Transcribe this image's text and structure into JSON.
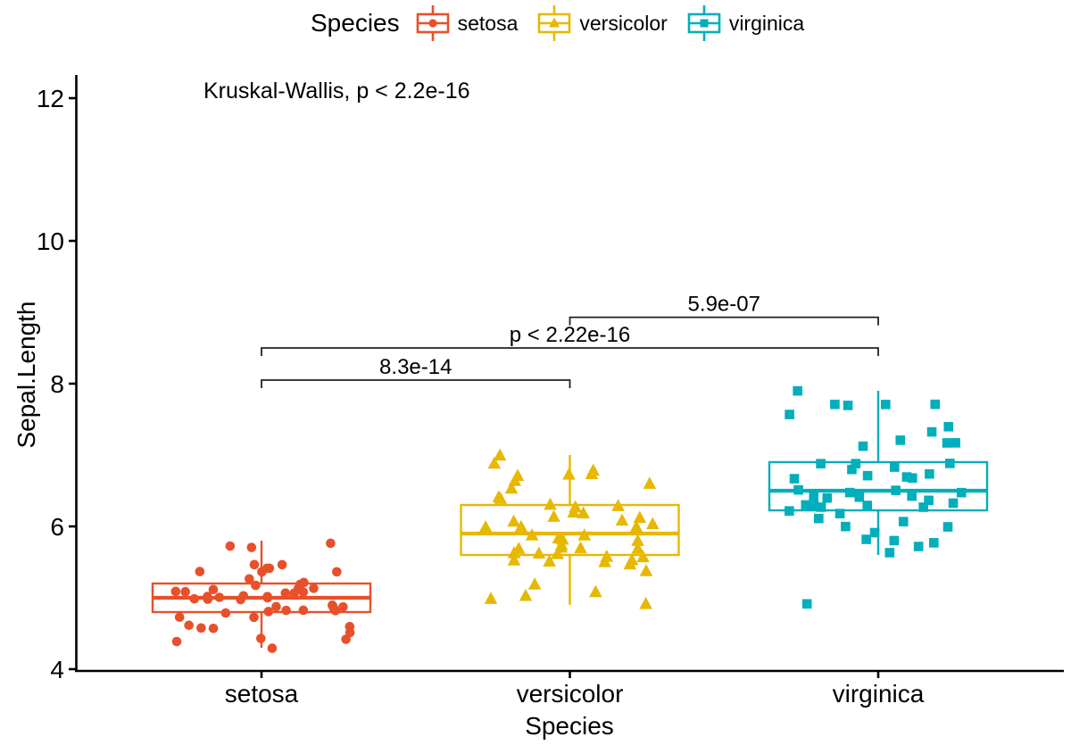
{
  "chart_data": {
    "type": "boxplot",
    "subtype": "boxplot-with-jitter",
    "legend_title": "Species",
    "annotation": "Kruskal-Wallis, p < 2.2e-16",
    "xlabel": "Species",
    "ylabel": "Sepal.Length",
    "categories": [
      "setosa",
      "versicolor",
      "virginica"
    ],
    "y_ticks": [
      4,
      6,
      8,
      10,
      12
    ],
    "ylim": [
      3.9,
      12.4
    ],
    "grid": false,
    "legend_position": "top",
    "series": [
      {
        "name": "setosa",
        "marker": "circle",
        "color": "#E8502B",
        "box": {
          "whisker_low": 4.3,
          "q1": 4.8,
          "median": 5.0,
          "q3": 5.2,
          "whisker_high": 5.8
        },
        "values": [
          5.1,
          4.9,
          4.7,
          4.6,
          5.0,
          5.4,
          4.6,
          5.0,
          4.4,
          4.9,
          5.4,
          4.8,
          4.8,
          4.3,
          5.8,
          5.7,
          5.4,
          5.1,
          5.7,
          5.1,
          5.4,
          5.1,
          4.6,
          5.1,
          4.8,
          5.0,
          5.0,
          5.2,
          5.2,
          4.7,
          4.8,
          5.4,
          5.2,
          5.5,
          4.9,
          5.0,
          5.5,
          4.9,
          4.4,
          5.1,
          5.0,
          4.5,
          4.4,
          5.0,
          5.1,
          4.8,
          5.1,
          4.6,
          5.3,
          5.0
        ]
      },
      {
        "name": "versicolor",
        "marker": "triangle",
        "color": "#E7B800",
        "box": {
          "whisker_low": 4.9,
          "q1": 5.6,
          "median": 5.9,
          "q3": 6.3,
          "whisker_high": 7.0
        },
        "values": [
          7.0,
          6.4,
          6.9,
          5.5,
          6.5,
          5.7,
          6.3,
          4.9,
          6.6,
          5.2,
          5.0,
          5.9,
          6.0,
          6.1,
          5.6,
          6.7,
          5.6,
          5.8,
          6.2,
          5.6,
          5.9,
          6.1,
          6.3,
          6.1,
          6.4,
          6.6,
          6.8,
          6.7,
          6.0,
          5.7,
          5.5,
          5.5,
          5.8,
          6.0,
          5.4,
          6.0,
          6.7,
          6.3,
          5.6,
          5.5,
          5.5,
          6.1,
          5.8,
          5.0,
          5.6,
          5.7,
          5.7,
          6.2,
          5.1,
          5.7
        ]
      },
      {
        "name": "virginica",
        "marker": "square",
        "color": "#00AFBB",
        "box": {
          "whisker_low": 5.6,
          "q1": 6.225,
          "median": 6.5,
          "q3": 6.9,
          "whisker_high": 7.9
        },
        "values": [
          6.3,
          5.8,
          7.1,
          6.3,
          6.5,
          7.6,
          4.9,
          7.3,
          6.7,
          7.2,
          6.5,
          6.4,
          6.8,
          5.7,
          5.8,
          6.4,
          6.5,
          7.7,
          7.7,
          6.0,
          6.9,
          5.6,
          7.7,
          6.3,
          6.7,
          7.2,
          6.2,
          6.1,
          6.4,
          7.2,
          7.4,
          7.9,
          6.4,
          6.3,
          6.1,
          7.7,
          6.3,
          6.4,
          6.0,
          6.9,
          6.7,
          6.9,
          5.8,
          6.8,
          6.7,
          6.7,
          6.3,
          6.5,
          6.2,
          5.9
        ]
      }
    ],
    "comparisons": [
      {
        "group1": "setosa",
        "group2": "versicolor",
        "label": "8.3e-14",
        "y": 8.05
      },
      {
        "group1": "setosa",
        "group2": "virginica",
        "label": "p < 2.22e-16",
        "y": 8.5
      },
      {
        "group1": "versicolor",
        "group2": "virginica",
        "label": "5.9e-07",
        "y": 8.93
      }
    ]
  }
}
